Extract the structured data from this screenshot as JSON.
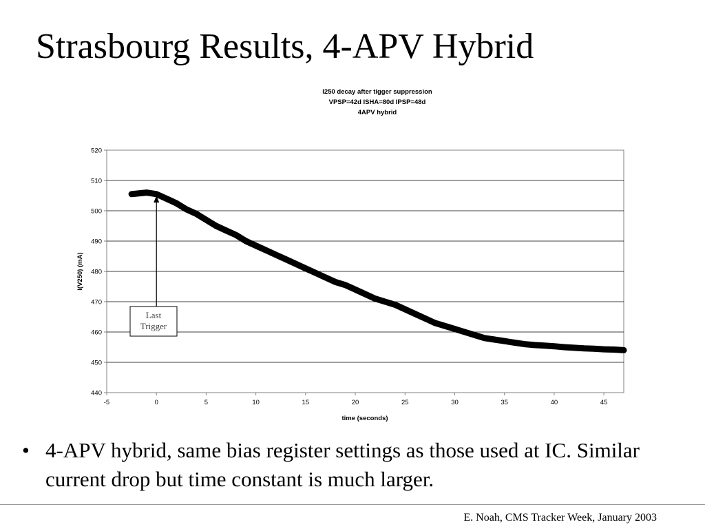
{
  "slide": {
    "title": "Strasbourg Results, 4-APV Hybrid",
    "bullet": "4-APV hybrid, same bias register settings as those used at IC. Similar current drop but time constant is much larger.",
    "bullet_glyph": "•",
    "footer": "E. Noah, CMS Tracker Week, January 2003"
  },
  "chart_data": {
    "type": "line",
    "title_lines": [
      "I250 decay after tigger  suppression",
      "VPSP=42d ISHA=80d IPSP=48d",
      "4APV hybrid"
    ],
    "xlabel": "time (seconds)",
    "ylabel": "I(V250) (mA)",
    "xlim": [
      -5,
      47
    ],
    "ylim": [
      440,
      520
    ],
    "xticks": [
      -5,
      0,
      5,
      10,
      15,
      20,
      25,
      30,
      35,
      40,
      45
    ],
    "yticks": [
      440,
      450,
      460,
      470,
      480,
      490,
      500,
      510,
      520
    ],
    "grid": "horizontal",
    "legend": "none",
    "line_color": "#000000",
    "series": [
      {
        "x": [
          -2.5,
          -1,
          0,
          1,
          2,
          3,
          4,
          5,
          6,
          7,
          8,
          9,
          10,
          11,
          12,
          13,
          14,
          15,
          16,
          17,
          18,
          19,
          20,
          21,
          22,
          23,
          24,
          25,
          26,
          27,
          28,
          29,
          30,
          31,
          32,
          33,
          34,
          35,
          36,
          37,
          38,
          39,
          40,
          41,
          42,
          43,
          44,
          45,
          46,
          47
        ],
        "y": [
          505.5,
          506,
          505.5,
          504,
          502.5,
          500.5,
          499,
          497,
          495,
          493.5,
          492,
          490,
          488.5,
          487,
          485.5,
          484,
          482.5,
          481,
          479.5,
          478,
          476.5,
          475.5,
          474,
          472.5,
          471,
          470,
          469,
          467.5,
          466,
          464.5,
          463,
          462,
          461,
          460,
          459,
          458,
          457.5,
          457,
          456.5,
          456,
          455.7,
          455.5,
          455.3,
          455,
          454.8,
          454.6,
          454.5,
          454.3,
          454.2,
          454
        ]
      }
    ],
    "annotation": {
      "text_lines": [
        "Last",
        "Trigger"
      ],
      "points_to_x": 0,
      "points_to_y": 505
    }
  }
}
